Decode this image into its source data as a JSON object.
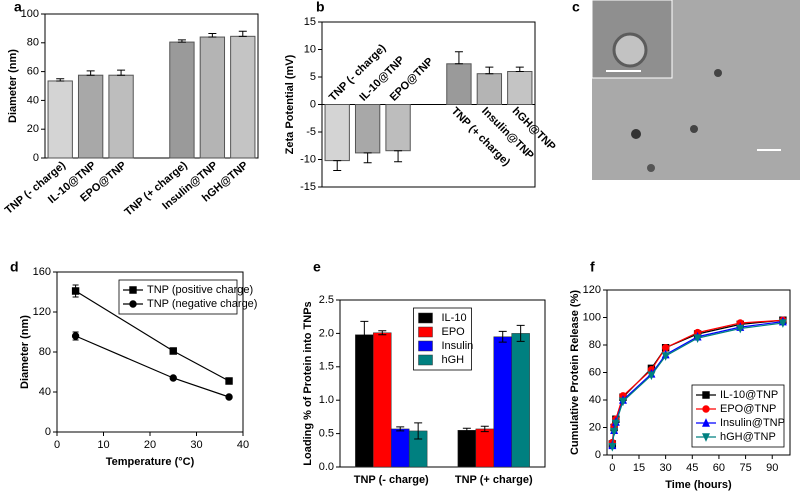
{
  "chart_data": [
    {
      "type": "bar",
      "label": "a",
      "ylabel": "Diameter (nm)",
      "categories": [
        "TNP (- charge)",
        "IL-10@TNP",
        "EPO@TNP",
        null,
        "TNP (+ charge)",
        "Insulin@TNP",
        "hGH@TNP"
      ],
      "values": [
        53.5,
        57.5,
        57.5,
        null,
        80.5,
        84,
        84.5
      ],
      "errors": [
        1.5,
        3,
        3.5,
        null,
        1.5,
        2.5,
        3.5
      ],
      "colors": [
        "#d4d4d4",
        "#a8a8a8",
        "#bdbdbd",
        null,
        "#9a9a9a",
        "#b4b4b4",
        "#c4c4c4"
      ],
      "ylim": [
        0,
        100
      ],
      "yticks": [
        0,
        20,
        40,
        60,
        80,
        100
      ]
    },
    {
      "type": "bar",
      "label": "b",
      "ylabel": "Zeta Potential (mV)",
      "categories": [
        "TNP (- charge)",
        "IL-10@TNP",
        "EPO@TNP",
        null,
        "TNP (+ charge)",
        "Insulin@TNP",
        "hGH@TNP"
      ],
      "values": [
        -10.2,
        -8.8,
        -8.4,
        null,
        7.4,
        5.6,
        6.0
      ],
      "errors": [
        1.8,
        1.8,
        2.0,
        null,
        2.2,
        1.2,
        0.8
      ],
      "colors": [
        "#d4d4d4",
        "#a8a8a8",
        "#bdbdbd",
        null,
        "#9a9a9a",
        "#b4b4b4",
        "#c4c4c4"
      ],
      "ylim": [
        -15,
        15
      ],
      "yticks": [
        -15,
        -10,
        -5,
        0,
        5,
        10,
        15
      ]
    },
    {
      "type": "image",
      "label": "c"
    },
    {
      "type": "line",
      "label": "d",
      "xlabel": "Temperature (°C)",
      "ylabel": "Diameter (nm)",
      "x": [
        4,
        25,
        37
      ],
      "series": [
        {
          "name": "TNP (positive charge)",
          "color": "#000000",
          "marker": "square",
          "values": [
            141,
            81,
            51
          ],
          "errors": [
            6,
            2,
            1
          ]
        },
        {
          "name": "TNP (negative charge)",
          "color": "#000000",
          "marker": "circle",
          "values": [
            96,
            54,
            35
          ],
          "errors": [
            4,
            1,
            1
          ]
        }
      ],
      "xlim": [
        0,
        40
      ],
      "xticks": [
        0,
        10,
        20,
        30,
        40
      ],
      "ylim": [
        0,
        160
      ],
      "yticks": [
        0,
        40,
        80,
        120,
        160
      ],
      "legend": "upper right"
    },
    {
      "type": "bar",
      "label": "e",
      "ylabel": "Loading % of Protein into TNPs",
      "categories": [
        "TNP (- charge)",
        "TNP (+ charge)"
      ],
      "series": [
        {
          "name": "IL-10",
          "color": "#000000",
          "values": [
            1.98,
            0.55
          ],
          "errors": [
            0.2,
            0.03
          ]
        },
        {
          "name": "EPO",
          "color": "#ff0000",
          "values": [
            2.01,
            0.57
          ],
          "errors": [
            0.03,
            0.04
          ]
        },
        {
          "name": "Insulin",
          "color": "#0000ff",
          "values": [
            0.57,
            1.95
          ],
          "errors": [
            0.03,
            0.08
          ]
        },
        {
          "name": "hGH",
          "color": "#008080",
          "values": [
            0.54,
            2.0
          ],
          "errors": [
            0.12,
            0.12
          ]
        }
      ],
      "ylim": [
        0,
        2.5
      ],
      "yticks": [
        {
          "value": 0,
          "label": "0.0"
        },
        0.5,
        {
          "value": 1,
          "label": "1.0"
        },
        1.5,
        {
          "value": 2,
          "label": "2.0"
        },
        2.5
      ],
      "legend": "upper center"
    },
    {
      "type": "line",
      "label": "f",
      "xlabel": "Time (hours)",
      "ylabel": "Cumulative Protein Release (%)",
      "x": [
        0,
        1,
        2,
        6,
        22,
        30,
        48,
        72,
        96
      ],
      "series": [
        {
          "name": "IL-10@TNP",
          "color": "#000000",
          "marker": "square",
          "values": [
            8,
            20,
            26,
            42,
            63,
            78,
            88,
            95,
            98
          ]
        },
        {
          "name": "EPO@TNP",
          "color": "#ff0000",
          "marker": "circle",
          "values": [
            9,
            21,
            26,
            43,
            62,
            78,
            89,
            96,
            98
          ]
        },
        {
          "name": "Insulin@TNP",
          "color": "#0000ff",
          "marker": "triangle",
          "values": [
            7,
            18,
            24,
            40,
            59,
            73,
            86,
            93,
            97
          ]
        },
        {
          "name": "hGH@TNP",
          "color": "#008080",
          "marker": "down",
          "values": [
            6,
            17,
            23,
            39,
            58,
            72,
            85,
            92,
            96
          ]
        }
      ],
      "xlim": [
        -3,
        100
      ],
      "xticks": [
        0,
        15,
        30,
        45,
        60,
        75,
        90
      ],
      "ylim": [
        0,
        120
      ],
      "yticks": [
        0,
        20,
        40,
        60,
        80,
        100,
        120
      ],
      "legend": "lower right"
    }
  ]
}
